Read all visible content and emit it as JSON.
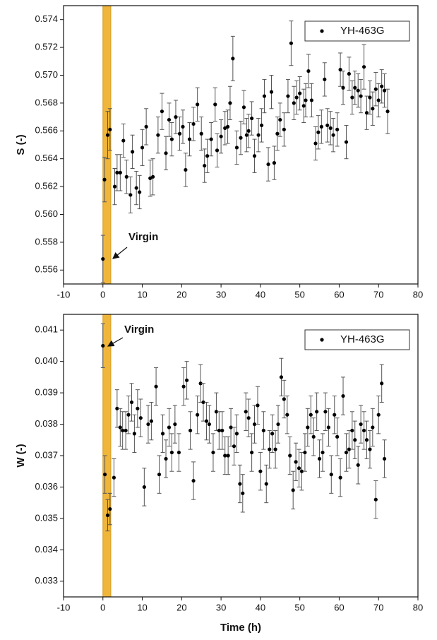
{
  "chart_data": [
    {
      "type": "scatter",
      "ylabel": "S (-)",
      "annotation": "Virgin",
      "legend": "upper right",
      "span": [
        0,
        2
      ],
      "span_color": "#f0b63c",
      "xlim": [
        -10,
        80
      ],
      "xticks": [
        -10,
        0,
        10,
        20,
        30,
        40,
        50,
        60,
        70,
        80
      ],
      "ylim": [
        0.555,
        0.575
      ],
      "yticks": [
        0.556,
        0.558,
        {
          "value": 0.56,
          "label": "0.560"
        },
        0.562,
        0.564,
        0.566,
        0.568,
        {
          "value": 0.57,
          "label": "0.570"
        },
        0.572,
        0.574
      ],
      "x": [
        0,
        0.4,
        1.2,
        1.8,
        3,
        3.6,
        4.4,
        5.2,
        6,
        7,
        7.5,
        8.5,
        9.3,
        10,
        11,
        12,
        12.7,
        14,
        15,
        16,
        16.8,
        17.5,
        18.5,
        19.5,
        20.3,
        21,
        22,
        23,
        24,
        25,
        25.8,
        26.5,
        27.5,
        28.5,
        29,
        30,
        31,
        31.7,
        32.3,
        33,
        34,
        35,
        35.8,
        36.5,
        37,
        37.8,
        38.5,
        39.5,
        40.3,
        41,
        42,
        42.8,
        43.5,
        44.3,
        45,
        46,
        47,
        47.8,
        48.5,
        49.2,
        50,
        51,
        51.5,
        52.2,
        53,
        54,
        54.7,
        55.5,
        56.3,
        57,
        57.8,
        58.5,
        59.5,
        60.3,
        61,
        61.8,
        62.5,
        63.3,
        64,
        64.8,
        65.5,
        66.3,
        67,
        67.8,
        68.5,
        69.3,
        70,
        70.8,
        71.5,
        72.3
      ],
      "series": [
        {
          "name": "YH-463G",
          "color": "#000000",
          "values": [
            0.5568,
            0.5625,
            0.5657,
            0.5661,
            0.562,
            0.563,
            0.563,
            0.5653,
            0.5627,
            0.5614,
            0.5645,
            0.5619,
            0.5616,
            0.5648,
            0.5663,
            0.5626,
            0.5627,
            0.5657,
            0.5674,
            0.5644,
            0.5668,
            0.5654,
            0.567,
            0.5658,
            0.5663,
            0.5632,
            0.5654,
            0.5665,
            0.5679,
            0.5658,
            0.5635,
            0.5642,
            0.5654,
            0.5679,
            0.5646,
            0.5656,
            0.5662,
            0.5663,
            0.568,
            0.5712,
            0.5648,
            0.5655,
            0.5677,
            0.5657,
            0.566,
            0.5669,
            0.5642,
            0.5657,
            0.5664,
            0.5685,
            0.5636,
            0.5688,
            0.5637,
            0.5658,
            0.5668,
            0.5661,
            0.5685,
            0.5723,
            0.568,
            0.5684,
            0.5687,
            0.5678,
            0.5682,
            0.5703,
            0.5682,
            0.5651,
            0.5659,
            0.5663,
            0.5697,
            0.5664,
            0.5662,
            0.5657,
            0.5661,
            0.5704,
            0.5691,
            0.5652,
            0.5701,
            0.5684,
            0.5691,
            0.5689,
            0.5685,
            0.5706,
            0.5673,
            0.5684,
            0.5676,
            0.569,
            0.5682,
            0.5692,
            0.5689,
            0.5674
          ],
          "errors": [
            0.0017,
            0.0016,
            0.0017,
            0.0015,
            0.0013,
            0.0013,
            0.0013,
            0.0012,
            0.0012,
            0.0013,
            0.0012,
            0.0012,
            0.0012,
            0.0013,
            0.0013,
            0.0013,
            0.0013,
            0.0013,
            0.0013,
            0.0012,
            0.0012,
            0.0012,
            0.0012,
            0.0012,
            0.0012,
            0.0012,
            0.0012,
            0.0012,
            0.0012,
            0.0012,
            0.0012,
            0.0012,
            0.0012,
            0.0012,
            0.0012,
            0.0012,
            0.0012,
            0.0012,
            0.0012,
            0.0016,
            0.0012,
            0.0012,
            0.0012,
            0.0012,
            0.0012,
            0.0012,
            0.0012,
            0.0012,
            0.0012,
            0.0012,
            0.0012,
            0.0012,
            0.0012,
            0.0012,
            0.0012,
            0.0012,
            0.0012,
            0.0016,
            0.0012,
            0.0012,
            0.0012,
            0.0012,
            0.0012,
            0.0012,
            0.0012,
            0.0012,
            0.0012,
            0.0012,
            0.0012,
            0.0012,
            0.0012,
            0.0012,
            0.0012,
            0.0012,
            0.0012,
            0.0012,
            0.0012,
            0.0012,
            0.0012,
            0.0012,
            0.0012,
            0.0016,
            0.0012,
            0.0012,
            0.0012,
            0.0012,
            0.0012,
            0.0012,
            0.0012,
            0.0016
          ]
        }
      ]
    },
    {
      "type": "scatter",
      "xlabel": "Time (h)",
      "ylabel": "W (-)",
      "annotation": "Virgin",
      "legend": "upper right",
      "span": [
        0,
        2
      ],
      "span_color": "#f0b63c",
      "xlim": [
        -10,
        80
      ],
      "xticks": [
        -10,
        0,
        10,
        20,
        30,
        40,
        50,
        60,
        70,
        80
      ],
      "ylim": [
        0.0325,
        0.0415
      ],
      "yticks": [
        0.033,
        0.034,
        0.035,
        0.036,
        0.037,
        0.038,
        0.039,
        {
          "value": 0.04,
          "label": "0.040"
        },
        0.041
      ],
      "x": [
        0,
        0.5,
        1.2,
        1.8,
        2.8,
        3.6,
        4.4,
        5,
        5.8,
        6.5,
        7.3,
        8,
        8.8,
        9.6,
        10.5,
        11.5,
        12.3,
        13.5,
        14.3,
        15.2,
        16,
        16.8,
        17.5,
        18.3,
        19.3,
        20.5,
        21.3,
        22.2,
        23,
        24,
        24.8,
        25.5,
        26.3,
        27,
        28,
        28.8,
        29.5,
        30.3,
        31,
        31.8,
        32.5,
        33.3,
        34,
        34.8,
        35.5,
        36.3,
        37,
        37.8,
        38.5,
        39.3,
        40,
        40.8,
        41.5,
        42.3,
        43,
        43.8,
        44.5,
        45.3,
        46,
        46.8,
        47.5,
        48.3,
        49,
        49.8,
        50.5,
        51.3,
        52,
        52.8,
        53.5,
        54.3,
        55,
        55.8,
        56.5,
        57.3,
        58,
        58.8,
        59.5,
        60.3,
        61,
        61.8,
        62.5,
        63.3,
        64,
        64.8,
        65.5,
        66.3,
        67,
        67.8,
        68.5,
        69.3,
        70,
        70.8,
        71.5
      ],
      "series": [
        {
          "name": "YH-463G",
          "color": "#000000",
          "values": [
            0.0405,
            0.0364,
            0.0351,
            0.0353,
            0.0363,
            0.0385,
            0.0379,
            0.0378,
            0.0378,
            0.0383,
            0.0387,
            0.0377,
            0.0385,
            0.0382,
            0.036,
            0.038,
            0.0381,
            0.0392,
            0.0364,
            0.0377,
            0.0369,
            0.0379,
            0.0371,
            0.038,
            0.0371,
            0.0392,
            0.0394,
            0.0378,
            0.0362,
            0.0383,
            0.0393,
            0.0387,
            0.0381,
            0.038,
            0.0371,
            0.0384,
            0.0378,
            0.0378,
            0.037,
            0.037,
            0.0379,
            0.0373,
            0.0377,
            0.0361,
            0.0358,
            0.0384,
            0.0382,
            0.0371,
            0.038,
            0.0386,
            0.0365,
            0.0378,
            0.0361,
            0.0372,
            0.0377,
            0.0372,
            0.038,
            0.0395,
            0.0388,
            0.0383,
            0.037,
            0.0359,
            0.0368,
            0.0366,
            0.0365,
            0.0371,
            0.0379,
            0.0383,
            0.0376,
            0.0384,
            0.0369,
            0.0371,
            0.0384,
            0.0379,
            0.0364,
            0.0383,
            0.0376,
            0.0363,
            0.0389,
            0.0371,
            0.0372,
            0.0378,
            0.0375,
            0.0367,
            0.038,
            0.0378,
            0.0375,
            0.0372,
            0.0379,
            0.0356,
            0.0383,
            0.0393,
            0.0369
          ],
          "errors": [
            0.0007,
            0.0006,
            0.0005,
            0.0005,
            0.0006,
            0.0006,
            0.0006,
            0.0006,
            0.0006,
            0.0006,
            0.0006,
            0.0006,
            0.0006,
            0.0006,
            0.0006,
            0.0006,
            0.0006,
            0.0006,
            0.0006,
            0.0006,
            0.0006,
            0.0006,
            0.0006,
            0.0006,
            0.0006,
            0.0006,
            0.0006,
            0.0006,
            0.0006,
            0.0006,
            0.0006,
            0.0006,
            0.0006,
            0.0006,
            0.0006,
            0.0006,
            0.0006,
            0.0006,
            0.0006,
            0.0006,
            0.0006,
            0.0006,
            0.0006,
            0.0006,
            0.0006,
            0.0006,
            0.0006,
            0.0006,
            0.0006,
            0.0006,
            0.0006,
            0.0006,
            0.0006,
            0.0006,
            0.0006,
            0.0006,
            0.0006,
            0.0006,
            0.0006,
            0.0006,
            0.0006,
            0.0006,
            0.0006,
            0.0006,
            0.0006,
            0.0006,
            0.0006,
            0.0006,
            0.0006,
            0.0006,
            0.0006,
            0.0006,
            0.0006,
            0.0006,
            0.0006,
            0.0006,
            0.0006,
            0.0006,
            0.0006,
            0.0006,
            0.0006,
            0.0006,
            0.0006,
            0.0006,
            0.0006,
            0.0006,
            0.0006,
            0.0006,
            0.0006,
            0.0006,
            0.0006,
            0.0006,
            0.0006
          ]
        }
      ]
    }
  ]
}
